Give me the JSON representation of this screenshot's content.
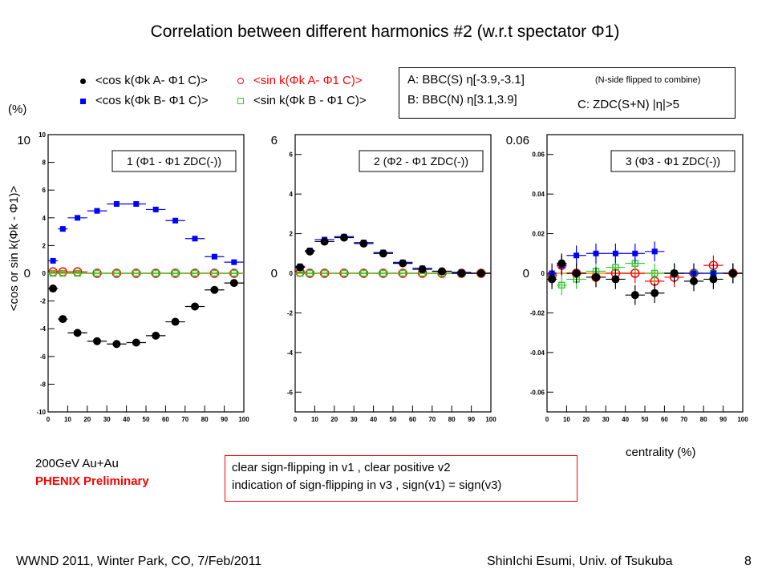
{
  "page": {
    "title": "Correlation between different harmonics #2 (w.r.t spectator Φ1)",
    "footer_left": "WWND 2011, Winter Park, CO, 7/Feb/2011",
    "footer_right": "ShinIchi Esumi, Univ. of Tsukuba",
    "page_number": "8"
  },
  "legend": {
    "cos_a": "<cos k(Φk A- Φ1 C)>",
    "cos_b": "<cos k(Φk B- Φ1 C)>",
    "sin_a": "<sin k(Φk A- Φ1 C)>",
    "sin_b": "<sin k(Φk B - Φ1 C)>"
  },
  "info": {
    "line_a": "A: BBC(S) η[-3.9,-3.1]",
    "line_b": "B: BBC(N) η[3.1,3.9]",
    "note": "(N-side flipped to combine)",
    "line_c": "C: ZDC(S+N) |η|>5"
  },
  "labels": {
    "unit": "(%)",
    "ylabel": "<cos or sin k(Φk - Φ1)>",
    "xlabel": "centrality (%)",
    "collision": "200GeV Au+Au",
    "preliminary": "PHENIX Preliminary",
    "conclusion_1": "clear sign-flipping in v1 , clear positive v2",
    "conclusion_2": "indication of sign-flipping in v3 , sign(v1) = sign(v3)"
  },
  "colors": {
    "cos_a": "#000000",
    "cos_b": "#0000ff",
    "sin_a": "#ff0000",
    "sin_b": "#33cc33",
    "zero_line": "#ff8c00"
  },
  "chart_data": [
    {
      "type": "scatter",
      "title": "1 (Φ1 - Φ1 ZDC(-))",
      "ylim": [
        -10,
        10
      ],
      "xlim": [
        0,
        100
      ],
      "y_scale_label_top": "10",
      "y_scale_label_zero": "0",
      "yticks": [
        "10",
        "8",
        "6",
        "4",
        "2",
        "0",
        "-2",
        "-4",
        "-6",
        "-8",
        "-10"
      ],
      "xticks": [
        "0",
        "10",
        "20",
        "30",
        "40",
        "50",
        "60",
        "70",
        "80",
        "90",
        "100"
      ],
      "series": [
        {
          "key": "cos_a",
          "x": [
            2.5,
            7.5,
            15,
            25,
            35,
            45,
            55,
            65,
            75,
            85,
            95
          ],
          "y": [
            -1.1,
            -3.3,
            -4.3,
            -4.9,
            -5.1,
            -5.0,
            -4.5,
            -3.5,
            -2.4,
            -1.2,
            -0.7
          ]
        },
        {
          "key": "cos_b",
          "x": [
            2.5,
            7.5,
            15,
            25,
            35,
            45,
            55,
            65,
            75,
            85,
            95
          ],
          "y": [
            0.9,
            3.2,
            4.0,
            4.5,
            5.0,
            5.0,
            4.6,
            3.8,
            2.5,
            1.2,
            0.8
          ]
        },
        {
          "key": "sin_a",
          "x": [
            2.5,
            7.5,
            15,
            25,
            35,
            45,
            55,
            65,
            75,
            85,
            95
          ],
          "y": [
            0.1,
            0.1,
            0.1,
            0.0,
            0.0,
            0.0,
            0.0,
            0.0,
            0.0,
            0.0,
            0.0
          ]
        },
        {
          "key": "sin_b",
          "x": [
            2.5,
            7.5,
            15,
            25,
            35,
            45,
            55,
            65,
            75,
            85,
            95
          ],
          "y": [
            0.0,
            0.0,
            0.0,
            0.0,
            0.0,
            0.0,
            0.0,
            0.0,
            0.0,
            0.0,
            0.0
          ]
        }
      ]
    },
    {
      "type": "scatter",
      "title": "2 (Φ2 - Φ1 ZDC(-))",
      "ylim": [
        -7,
        7
      ],
      "xlim": [
        0,
        100
      ],
      "y_scale_label_top": "6",
      "y_scale_label_zero": "0",
      "yticks": [
        "6",
        "4",
        "2",
        "0",
        "-2",
        "-4",
        "-6"
      ],
      "xticks": [
        "0",
        "10",
        "20",
        "30",
        "40",
        "50",
        "60",
        "70",
        "80",
        "90",
        "100"
      ],
      "series": [
        {
          "key": "cos_a",
          "x": [
            2.5,
            7.5,
            15,
            25,
            35,
            45,
            55,
            65,
            75,
            85,
            95
          ],
          "y": [
            0.3,
            1.1,
            1.6,
            1.8,
            1.5,
            1.0,
            0.5,
            0.2,
            0.1,
            0.0,
            0.0
          ]
        },
        {
          "key": "cos_b",
          "x": [
            2.5,
            7.5,
            15,
            25,
            35,
            45,
            55,
            65,
            75,
            85,
            95
          ],
          "y": [
            0.35,
            1.15,
            1.7,
            1.85,
            1.55,
            1.05,
            0.55,
            0.25,
            0.1,
            0.05,
            0.0
          ]
        },
        {
          "key": "sin_a",
          "x": [
            2.5,
            7.5,
            15,
            25,
            35,
            45,
            55,
            65,
            75,
            85,
            95
          ],
          "y": [
            0.05,
            0.0,
            0.0,
            0.0,
            0.0,
            0.0,
            0.0,
            0.0,
            0.0,
            0.0,
            0.0
          ]
        },
        {
          "key": "sin_b",
          "x": [
            2.5,
            7.5,
            15,
            25,
            35,
            45,
            55,
            65,
            75,
            85,
            95
          ],
          "y": [
            0.0,
            0.0,
            0.0,
            0.0,
            0.0,
            0.0,
            0.0,
            0.0,
            0.0,
            0.0,
            0.0
          ]
        }
      ]
    },
    {
      "type": "scatter",
      "title": "3 (Φ3 - Φ1 ZDC(-))",
      "ylim": [
        -0.07,
        0.07
      ],
      "xlim": [
        0,
        100
      ],
      "y_scale_label_top": "0.06",
      "y_scale_label_zero": "0",
      "yticks": [
        "0.06",
        "0.04",
        "0.02",
        "0",
        "-0.02",
        "-0.04",
        "-0.06"
      ],
      "xticks": [
        "0",
        "10",
        "20",
        "30",
        "40",
        "50",
        "60",
        "70",
        "80",
        "90",
        "100"
      ],
      "series": [
        {
          "key": "cos_a",
          "x": [
            2.5,
            7.5,
            15,
            25,
            35,
            45,
            55,
            65,
            75,
            85,
            95
          ],
          "y": [
            -0.003,
            0.005,
            0.0,
            -0.002,
            -0.003,
            -0.011,
            -0.01,
            0.0,
            -0.004,
            -0.003,
            0.0
          ]
        },
        {
          "key": "cos_b",
          "x": [
            2.5,
            7.5,
            15,
            25,
            35,
            45,
            55,
            65,
            75,
            85,
            95
          ],
          "y": [
            0.0,
            0.004,
            0.009,
            0.01,
            0.01,
            0.01,
            0.011,
            0.0,
            0.0,
            0.0,
            0.0
          ]
        },
        {
          "key": "sin_a",
          "x": [
            2.5,
            7.5,
            15,
            25,
            35,
            45,
            55,
            65,
            75,
            85,
            95
          ],
          "y": [
            -0.001,
            0.004,
            0.0,
            -0.002,
            0.0,
            0.0,
            -0.004,
            -0.002,
            0.0,
            0.004,
            0.0
          ]
        },
        {
          "key": "sin_b",
          "x": [
            2.5,
            7.5,
            15,
            25,
            35,
            45,
            55,
            65,
            75,
            85,
            95
          ],
          "y": [
            -0.002,
            -0.006,
            -0.003,
            0.001,
            0.003,
            0.005,
            0.0,
            0.0,
            0.0,
            0.0,
            0.0
          ]
        }
      ]
    }
  ]
}
